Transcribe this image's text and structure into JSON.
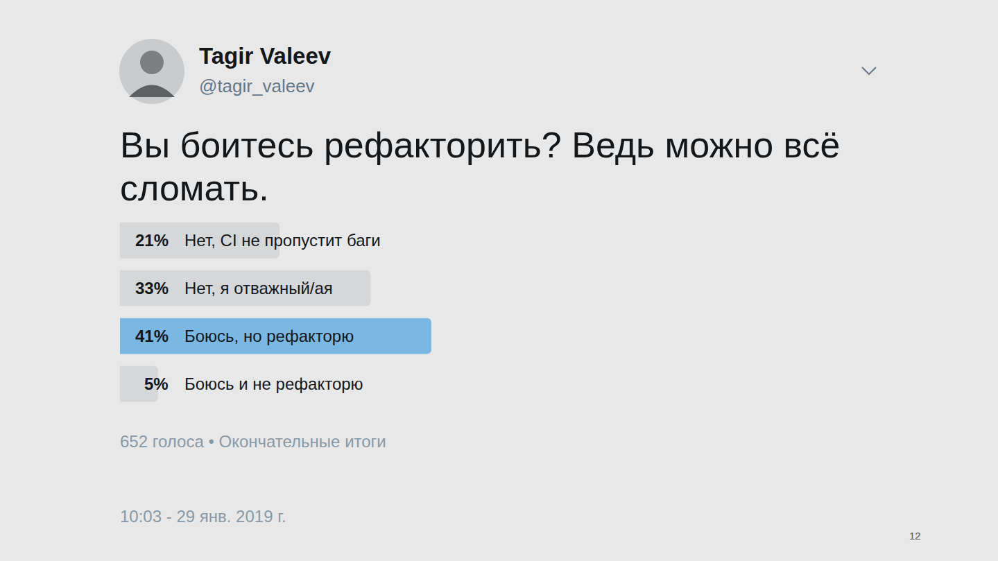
{
  "chart_data": {
    "type": "bar",
    "orientation": "horizontal",
    "title": "Вы боитесь рефакторить? Ведь можно всё сломать.",
    "annotations": {
      "author": "Tagir Valeev",
      "handle": "@tagir_valeev",
      "footer": "652 голоса • Окончательные итоги",
      "date": "10:03 - 29 янв. 2019 г.",
      "page": "12"
    },
    "categories": [
      "Нет, CI не пропустит баги",
      "Нет, я отважный/ая",
      "Боюсь, но рефакторю",
      "Боюсь и не рефакторю"
    ],
    "values": [
      21,
      33,
      41,
      5
    ],
    "value_labels": [
      "21%",
      "33%",
      "41%",
      "5%"
    ],
    "colors": [
      "#d5d7d9",
      "#d5d7d9",
      "#7ab8e3",
      "#d5d7d9"
    ],
    "xlim": [
      0,
      100
    ],
    "xticks": [
      0,
      100
    ],
    "tick_labels": false,
    "grid": false,
    "data_labels": true
  }
}
